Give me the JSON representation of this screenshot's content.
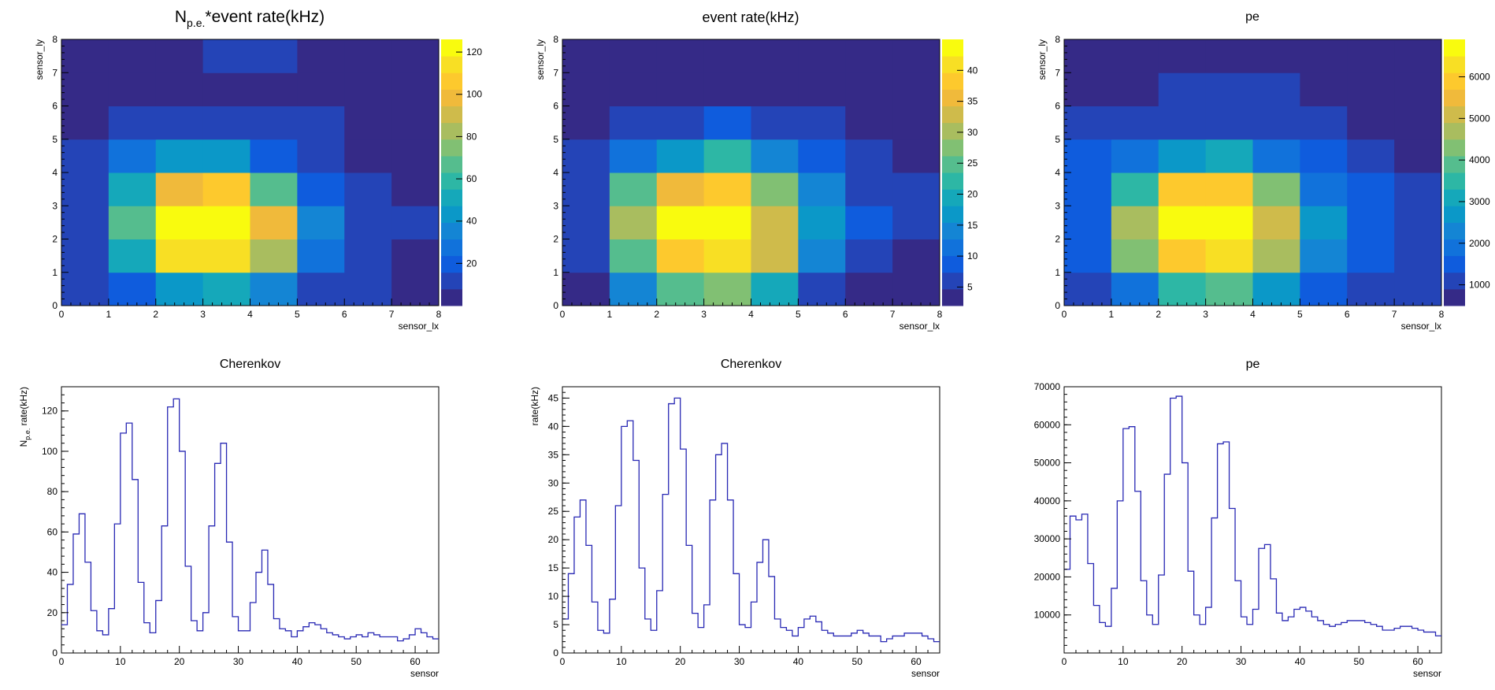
{
  "palette": [
    "#352a87",
    "#2444b7",
    "#0f5cdd",
    "#1172db",
    "#1485d4",
    "#0b98c8",
    "#15a8ba",
    "#2db7a5",
    "#55bd8e",
    "#81c073",
    "#a9bd5f",
    "#cfbb4b",
    "#f0ba3b",
    "#fdc92d",
    "#f8df24",
    "#f9fb0e"
  ],
  "line_color": "#2828b4",
  "chart_data": [
    {
      "type": "heatmap",
      "title": "N_{p.e.}*event rate(kHz)",
      "title_main": "N",
      "title_sub": "p.e.",
      "title_rest": "*event rate(kHz)",
      "xlabel": "sensor_lx",
      "ylabel": "sensor_ly",
      "xlim": [
        0,
        8
      ],
      "ylim": [
        0,
        8
      ],
      "xticks": [
        "0",
        "1",
        "2",
        "3",
        "4",
        "5",
        "6",
        "7",
        "8"
      ],
      "yticks": [
        "0",
        "1",
        "2",
        "3",
        "4",
        "5",
        "6",
        "7",
        "8"
      ],
      "zlim": [
        0,
        126
      ],
      "zticks": [
        20,
        40,
        60,
        80,
        100,
        120
      ],
      "zticklabels": [
        "20",
        "40",
        "60",
        "80",
        "100",
        "120"
      ],
      "z": [
        [
          9,
          20,
          45,
          55,
          38,
          14,
          8,
          5
        ],
        [
          12,
          52,
          112,
          114,
          85,
          28,
          10,
          7
        ],
        [
          15,
          68,
          122,
          125,
          100,
          35,
          14,
          12
        ],
        [
          15,
          52,
          98,
          106,
          68,
          22,
          10,
          6
        ],
        [
          10,
          25,
          42,
          45,
          22,
          13,
          6,
          5
        ],
        [
          7,
          11,
          12,
          12,
          11,
          9,
          6,
          5
        ],
        [
          5,
          6,
          6,
          6,
          6,
          6,
          5,
          4
        ],
        [
          4,
          4,
          6,
          10,
          10,
          4,
          4,
          4
        ]
      ]
    },
    {
      "type": "heatmap",
      "title": "event rate(kHz)",
      "xlabel": "sensor_lx",
      "ylabel": "sensor_ly",
      "xlim": [
        0,
        8
      ],
      "ylim": [
        0,
        8
      ],
      "xticks": [
        "0",
        "1",
        "2",
        "3",
        "4",
        "5",
        "6",
        "7",
        "8"
      ],
      "yticks": [
        "0",
        "1",
        "2",
        "3",
        "4",
        "5",
        "6",
        "7",
        "8"
      ],
      "zlim": [
        2,
        45
      ],
      "zticks": [
        5,
        10,
        15,
        20,
        25,
        30,
        35,
        40
      ],
      "zticklabels": [
        "5",
        "10",
        "15",
        "20",
        "25",
        "30",
        "35",
        "40"
      ],
      "z": [
        [
          4,
          14,
          26,
          28,
          20,
          7,
          4,
          2
        ],
        [
          5,
          26,
          38,
          41,
          33,
          15,
          6,
          4
        ],
        [
          6,
          29,
          44,
          45,
          34,
          17,
          8,
          5
        ],
        [
          6,
          24,
          36,
          38,
          27,
          13,
          6,
          5
        ],
        [
          5,
          12,
          18,
          21,
          14,
          8,
          5,
          3
        ],
        [
          3,
          6,
          6,
          8,
          6,
          5,
          3,
          3
        ],
        [
          3,
          3,
          3,
          3,
          4,
          3,
          3,
          3
        ],
        [
          3,
          3,
          3,
          3,
          3,
          3,
          3,
          3
        ]
      ]
    },
    {
      "type": "heatmap",
      "title": "pe",
      "xlabel": "sensor_lx",
      "ylabel": "sensor_ly",
      "xlim": [
        0,
        8
      ],
      "ylim": [
        0,
        8
      ],
      "xticks": [
        "0",
        "1",
        "2",
        "3",
        "4",
        "5",
        "6",
        "7",
        "8"
      ],
      "yticks": [
        "0",
        "1",
        "2",
        "3",
        "4",
        "5",
        "6",
        "7",
        "8"
      ],
      "zlim": [
        500,
        6900
      ],
      "zticks": [
        1000,
        2000,
        3000,
        4000,
        5000,
        6000
      ],
      "zticklabels": [
        "1000",
        "2000",
        "3000",
        "4000",
        "5000",
        "6000"
      ],
      "z": [
        [
          1000,
          2000,
          3400,
          4000,
          2800,
          1400,
          1100,
          900
        ],
        [
          1400,
          4300,
          6000,
          6100,
          4700,
          2300,
          1400,
          1000
        ],
        [
          1600,
          4700,
          6800,
          6900,
          5200,
          2600,
          1500,
          1200
        ],
        [
          1600,
          3600,
          6000,
          6000,
          4100,
          1900,
          1300,
          900
        ],
        [
          1300,
          2000,
          2800,
          2900,
          2000,
          1400,
          1000,
          800
        ],
        [
          900,
          1100,
          1200,
          1200,
          1100,
          1000,
          800,
          700
        ],
        [
          700,
          700,
          900,
          900,
          900,
          800,
          700,
          700
        ],
        [
          600,
          600,
          700,
          700,
          700,
          600,
          600,
          600
        ]
      ]
    },
    {
      "type": "line",
      "title": "Cherenkov",
      "xlabel": "sensor",
      "ylabel": "N_{p.e.} rate(kHz)",
      "ylabel_main": "N",
      "ylabel_sub": "p.e.",
      "ylabel_rest": " rate(kHz)",
      "xlim": [
        0,
        64
      ],
      "ylim": [
        0,
        132
      ],
      "xticks": [
        0,
        10,
        20,
        30,
        40,
        50,
        60
      ],
      "yticks": [
        0,
        20,
        40,
        60,
        80,
        100,
        120
      ],
      "x": [
        0,
        1,
        2,
        3,
        4,
        5,
        6,
        7,
        8,
        9,
        10,
        11,
        12,
        13,
        14,
        15,
        16,
        17,
        18,
        19,
        20,
        21,
        22,
        23,
        24,
        25,
        26,
        27,
        28,
        29,
        30,
        31,
        32,
        33,
        34,
        35,
        36,
        37,
        38,
        39,
        40,
        41,
        42,
        43,
        44,
        45,
        46,
        47,
        48,
        49,
        50,
        51,
        52,
        53,
        54,
        55,
        56,
        57,
        58,
        59,
        60,
        61,
        62,
        63
      ],
      "values": [
        14,
        34,
        59,
        69,
        45,
        21,
        11,
        9,
        22,
        64,
        109,
        114,
        86,
        35,
        15,
        10,
        26,
        63,
        122,
        126,
        100,
        43,
        16,
        11,
        20,
        63,
        94,
        104,
        55,
        18,
        11,
        11,
        25,
        40,
        51,
        34,
        17,
        12,
        11,
        8,
        11,
        13,
        15,
        14,
        12,
        10,
        9,
        8,
        7,
        8,
        9,
        8,
        10,
        9,
        8,
        8,
        8,
        6,
        7,
        9,
        12,
        10,
        8,
        7
      ]
    },
    {
      "type": "line",
      "title": "Cherenkov",
      "xlabel": "sensor",
      "ylabel": "rate(kHz)",
      "xlim": [
        0,
        64
      ],
      "ylim": [
        0,
        47
      ],
      "xticks": [
        0,
        10,
        20,
        30,
        40,
        50,
        60
      ],
      "yticks": [
        0,
        5,
        10,
        15,
        20,
        25,
        30,
        35,
        40,
        45
      ],
      "x": [
        0,
        1,
        2,
        3,
        4,
        5,
        6,
        7,
        8,
        9,
        10,
        11,
        12,
        13,
        14,
        15,
        16,
        17,
        18,
        19,
        20,
        21,
        22,
        23,
        24,
        25,
        26,
        27,
        28,
        29,
        30,
        31,
        32,
        33,
        34,
        35,
        36,
        37,
        38,
        39,
        40,
        41,
        42,
        43,
        44,
        45,
        46,
        47,
        48,
        49,
        50,
        51,
        52,
        53,
        54,
        55,
        56,
        57,
        58,
        59,
        60,
        61,
        62,
        63
      ],
      "values": [
        6,
        14,
        24,
        27,
        19,
        9,
        4,
        3.5,
        9.5,
        26,
        40,
        41,
        34,
        15,
        6,
        4,
        11,
        28,
        44,
        45,
        36,
        19,
        7,
        4.5,
        8.5,
        27,
        35,
        37,
        27,
        14,
        5,
        4.5,
        9,
        16,
        20,
        13.5,
        6,
        4.5,
        4,
        3,
        4.5,
        6,
        6.5,
        5.5,
        4,
        3.5,
        3,
        3,
        3,
        3.5,
        4,
        3.5,
        3,
        3,
        2,
        2.5,
        3,
        3,
        3.5,
        3.5,
        3.5,
        3,
        2.5,
        2
      ]
    },
    {
      "type": "line",
      "title": "pe",
      "xlabel": "sensor",
      "ylabel": "",
      "xlim": [
        0,
        64
      ],
      "ylim": [
        0,
        70000
      ],
      "xticks": [
        0,
        10,
        20,
        30,
        40,
        50,
        60
      ],
      "yticks": [
        10000,
        20000,
        30000,
        40000,
        50000,
        60000,
        70000
      ],
      "x": [
        0,
        1,
        2,
        3,
        4,
        5,
        6,
        7,
        8,
        9,
        10,
        11,
        12,
        13,
        14,
        15,
        16,
        17,
        18,
        19,
        20,
        21,
        22,
        23,
        24,
        25,
        26,
        27,
        28,
        29,
        30,
        31,
        32,
        33,
        34,
        35,
        36,
        37,
        38,
        39,
        40,
        41,
        42,
        43,
        44,
        45,
        46,
        47,
        48,
        49,
        50,
        51,
        52,
        53,
        54,
        55,
        56,
        57,
        58,
        59,
        60,
        61,
        62,
        63
      ],
      "values": [
        22000,
        36000,
        35000,
        36500,
        23500,
        12500,
        8000,
        7000,
        17000,
        40000,
        59000,
        59500,
        42500,
        19000,
        10000,
        7500,
        20500,
        47000,
        67000,
        67500,
        50000,
        21500,
        10000,
        7500,
        12000,
        35500,
        55000,
        55500,
        38000,
        19000,
        9500,
        7500,
        11500,
        27500,
        28500,
        19500,
        10500,
        8500,
        9500,
        11500,
        12000,
        11000,
        9500,
        8500,
        7500,
        7000,
        7500,
        8000,
        8500,
        8500,
        8500,
        8000,
        7500,
        7000,
        6000,
        6000,
        6500,
        7000,
        7000,
        6500,
        6000,
        5500,
        5500,
        4500
      ]
    }
  ]
}
